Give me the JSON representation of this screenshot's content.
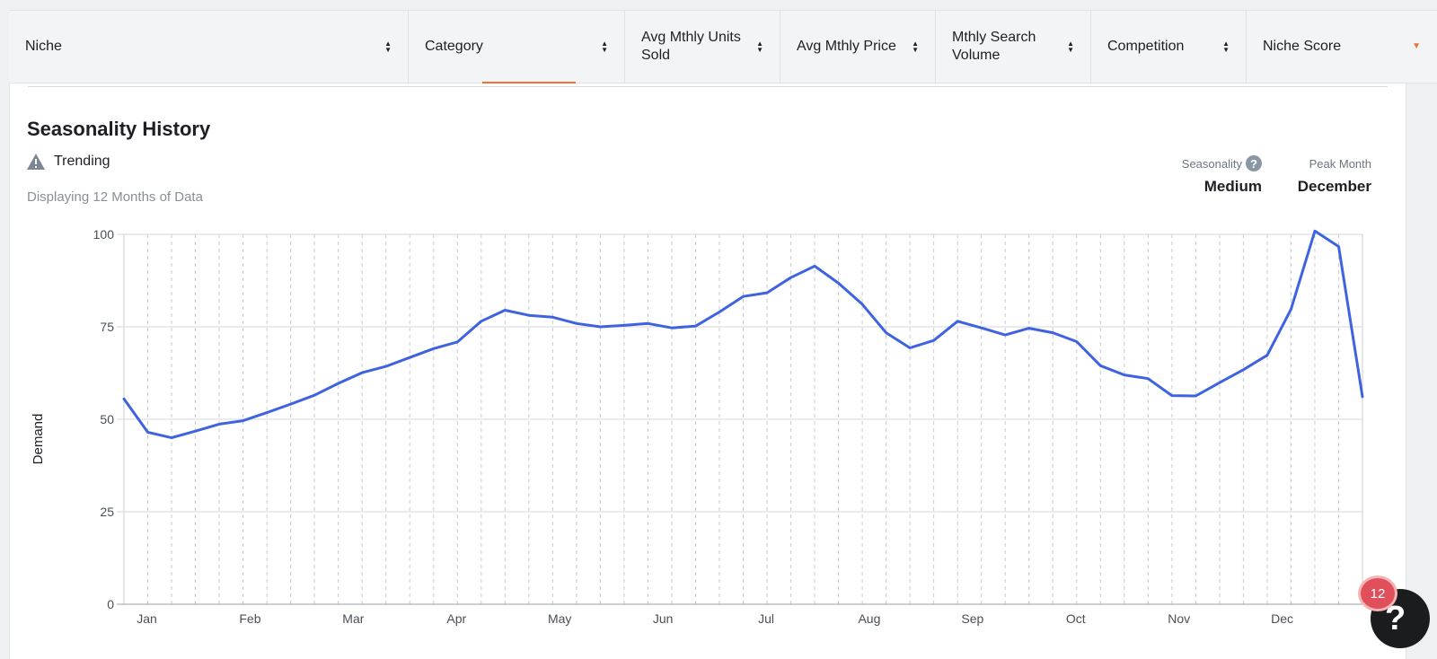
{
  "table_header": {
    "columns": [
      {
        "label": "Niche",
        "sort": "both"
      },
      {
        "label": "Category",
        "sort": "both"
      },
      {
        "label": "Avg Mthly Units Sold",
        "sort": "both"
      },
      {
        "label": "Avg Mthly Price",
        "sort": "both"
      },
      {
        "label": "Mthly Search Volume",
        "sort": "both"
      },
      {
        "label": "Competition",
        "sort": "both"
      },
      {
        "label": "Niche Score",
        "sort": "desc"
      }
    ]
  },
  "panel": {
    "title": "Seasonality History",
    "trending_label": "Trending",
    "subtitle": "Displaying 12 Months of Data",
    "seasonality_label": "Seasonality",
    "seasonality_value": "Medium",
    "peak_month_label": "Peak Month",
    "peak_month_value": "December"
  },
  "colors": {
    "line": "#3f63e0",
    "accent": "#e9743a",
    "badge": "#e0505a"
  },
  "help_widget": {
    "icon": "help-icon",
    "badge_count": "12"
  },
  "chart_data": {
    "type": "line",
    "ylabel": "Demand",
    "ylim": [
      0,
      100
    ],
    "yticks": [
      0,
      25,
      50,
      75,
      100
    ],
    "month_labels": [
      "Jan",
      "Feb",
      "Mar",
      "Apr",
      "May",
      "Jun",
      "Jul",
      "Aug",
      "Sep",
      "Oct",
      "Nov",
      "Dec"
    ],
    "grid": "vertical dashed per week, horizontal solid",
    "series": [
      {
        "values": [
          55.5,
          46.5,
          45,
          46.8,
          48.7,
          49.6,
          51.8,
          54.1,
          56.5,
          59.7,
          62.6,
          64.3,
          66.7,
          69.1,
          70.9,
          76.5,
          79.5,
          78.1,
          77.6,
          75.9,
          75,
          75.4,
          75.9,
          74.7,
          75.2,
          79,
          83.2,
          84.2,
          88.3,
          91.4,
          86.8,
          81.1,
          73.4,
          69.3,
          71.3,
          76.5,
          74.7,
          72.8,
          74.6,
          73.4,
          71,
          64.5,
          62,
          61,
          56.4,
          56.3,
          59.9,
          63.4,
          67.3,
          79.7,
          100.9,
          96.7,
          56.1
        ]
      }
    ]
  }
}
